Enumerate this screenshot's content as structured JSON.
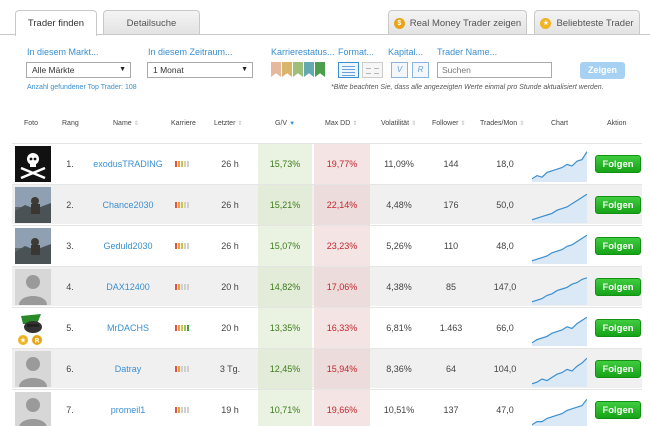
{
  "tabs": {
    "find_trader": "Trader finden",
    "detail_search": "Detailsuche",
    "real_money": "Real Money Trader zeigen",
    "real_money_badge": "$",
    "most_popular": "Beliebteste Trader",
    "most_popular_badge": "★"
  },
  "filters": {
    "market_label": "In diesem Markt...",
    "market_value": "Alle Märkte",
    "period_label": "In diesem Zeitraum...",
    "period_value": "1 Monat",
    "career_label": "Karrierestatus...",
    "format_label": "Format...",
    "capital_label": "Kapital...",
    "capital_options": [
      "V",
      "R"
    ],
    "name_label": "Trader Name...",
    "search_placeholder": "Suchen",
    "show_button": "Zeigen",
    "found_count": "Anzahl gefundener Top Trader: 108",
    "note": "*Bitte beachten Sie, dass alle angezeigten Werte einmal pro Stunde aktualisiert werden."
  },
  "colors": {
    "career_ribbons": [
      "#e6b8a0",
      "#d9b56a",
      "#9dbf7a",
      "#64a8b0",
      "#4c9e4c"
    ],
    "accent": "#3a8fd0",
    "follow_green": "#22b022"
  },
  "table": {
    "headers": {
      "photo": "Foto",
      "rank": "Rang",
      "name": "Name",
      "career": "Karriere",
      "last": "Letzter",
      "gv": "G/V",
      "maxdd": "Max DD",
      "volatility": "Volatilität",
      "follower": "Follower",
      "trades": "Trades/Mon",
      "chart": "Chart",
      "action": "Aktion"
    },
    "rows": [
      {
        "rank": "1.",
        "name": "exodusTRADING",
        "last": "26 h",
        "gv": "15,73%",
        "dd": "19,77%",
        "vol": "11,09%",
        "followers": "144",
        "trades": "18,0",
        "action": "Folgen",
        "photo": "skull-icon",
        "career": 3,
        "chart": [
          0.1,
          0.2,
          0.15,
          0.3,
          0.35,
          0.4,
          0.45,
          0.55,
          0.5,
          0.65,
          0.7,
          0.95
        ]
      },
      {
        "rank": "2.",
        "name": "Chance2030",
        "last": "26 h",
        "gv": "15,21%",
        "dd": "22,14%",
        "vol": "4,48%",
        "followers": "176",
        "trades": "50,0",
        "action": "Folgen",
        "photo": "landscape-photo",
        "career": 3,
        "chart": [
          0.1,
          0.15,
          0.2,
          0.25,
          0.3,
          0.4,
          0.45,
          0.5,
          0.6,
          0.7,
          0.8,
          0.9
        ]
      },
      {
        "rank": "3.",
        "name": "Geduld2030",
        "last": "26 h",
        "gv": "15,07%",
        "dd": "23,23%",
        "vol": "5,26%",
        "followers": "110",
        "trades": "48,0",
        "action": "Folgen",
        "photo": "landscape-photo",
        "career": 3,
        "chart": [
          0.1,
          0.15,
          0.2,
          0.25,
          0.35,
          0.4,
          0.45,
          0.55,
          0.6,
          0.7,
          0.8,
          0.9
        ]
      },
      {
        "rank": "4.",
        "name": "DAX12400",
        "last": "20 h",
        "gv": "14,82%",
        "dd": "17,06%",
        "vol": "4,38%",
        "followers": "85",
        "trades": "147,0",
        "action": "Folgen",
        "photo": "person-placeholder-icon",
        "career": 2,
        "chart": [
          0.1,
          0.15,
          0.2,
          0.3,
          0.35,
          0.45,
          0.5,
          0.55,
          0.65,
          0.7,
          0.8,
          0.85
        ]
      },
      {
        "rank": "5.",
        "name": "MrDACHS",
        "last": "20 h",
        "gv": "13,35%",
        "dd": "16,33%",
        "vol": "6,81%",
        "followers": "1.463",
        "trades": "66,0",
        "action": "Folgen",
        "photo": "dachshund-avatar",
        "career": 5,
        "chart": [
          0.1,
          0.2,
          0.25,
          0.3,
          0.4,
          0.45,
          0.5,
          0.6,
          0.55,
          0.7,
          0.8,
          0.9
        ]
      },
      {
        "rank": "6.",
        "name": "Datray",
        "last": "3 Tg.",
        "gv": "12,45%",
        "dd": "15,94%",
        "vol": "8,36%",
        "followers": "64",
        "trades": "104,0",
        "action": "Folgen",
        "photo": "person-placeholder-icon",
        "career": 2,
        "chart": [
          0.1,
          0.15,
          0.25,
          0.2,
          0.3,
          0.4,
          0.45,
          0.55,
          0.5,
          0.65,
          0.75,
          0.9
        ]
      },
      {
        "rank": "7.",
        "name": "promeil1",
        "last": "19 h",
        "gv": "10,71%",
        "dd": "19,66%",
        "vol": "10,51%",
        "followers": "137",
        "trades": "47,0",
        "action": "Folgen",
        "photo": "person-placeholder-icon",
        "career": 2,
        "chart": [
          0.1,
          0.2,
          0.2,
          0.3,
          0.35,
          0.4,
          0.45,
          0.55,
          0.6,
          0.65,
          0.7,
          0.9
        ]
      }
    ]
  }
}
